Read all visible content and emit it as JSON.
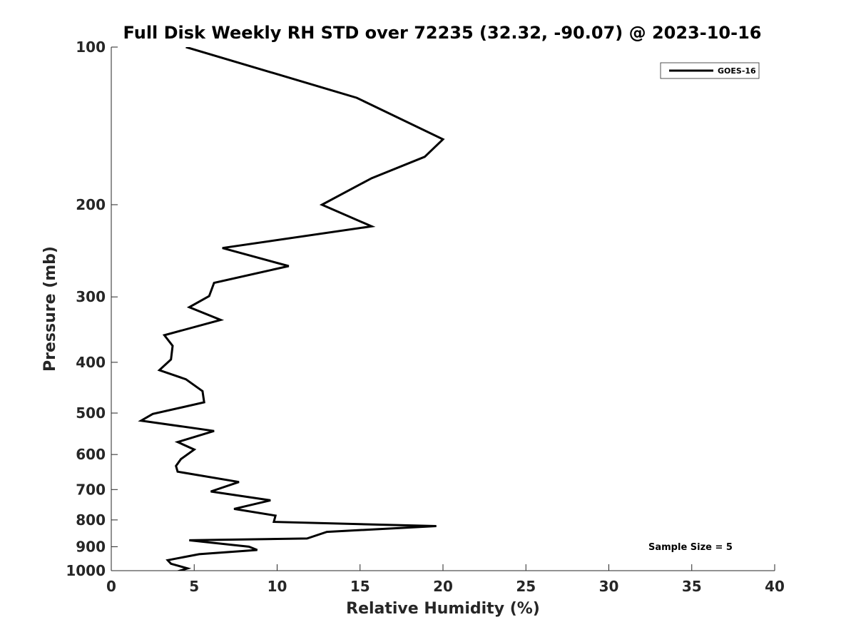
{
  "chart_data": {
    "type": "line",
    "title": "Full Disk Weekly RH STD over 72235 (32.32, -90.07) @ 2023-10-16",
    "xlabel": "Relative Humidity (%)",
    "ylabel": "Pressure (mb)",
    "xlim": [
      0,
      40
    ],
    "ylim": [
      1000,
      100
    ],
    "yscale": "log",
    "xticks": [
      0,
      5,
      10,
      15,
      20,
      25,
      30,
      35,
      40
    ],
    "yticks": [
      100,
      200,
      300,
      400,
      500,
      600,
      700,
      800,
      900,
      1000
    ],
    "legend": {
      "placement": "top-right",
      "entries": [
        "GOES-16"
      ]
    },
    "annotation": "Sample Size = 5",
    "series": [
      {
        "name": "GOES-16",
        "color": "#000000",
        "x": [
          4.5,
          14.8,
          20.0,
          18.9,
          15.7,
          12.7,
          15.7,
          6.7,
          10.7,
          6.2,
          5.9,
          4.7,
          6.6,
          3.2,
          3.7,
          3.6,
          2.9,
          4.5,
          5.5,
          5.6,
          2.5,
          1.8,
          6.2,
          4.0,
          5.0,
          4.2,
          3.9,
          4.0,
          7.7,
          6.0,
          9.6,
          7.4,
          9.9,
          9.8,
          19.6,
          13.0,
          11.8,
          4.7,
          8.3,
          8.8,
          5.3,
          3.4,
          3.6,
          4.6,
          3.7
        ],
        "y": [
          100,
          125,
          150,
          162,
          178,
          200,
          220,
          242,
          262,
          282,
          299,
          314,
          332,
          355,
          372,
          395,
          414,
          431,
          454,
          477,
          502,
          517,
          541,
          568,
          587,
          612,
          631,
          647,
          677,
          706,
          734,
          762,
          785,
          807,
          822,
          843,
          868,
          875,
          900,
          913,
          930,
          955,
          970,
          990,
          1010
        ]
      }
    ]
  }
}
